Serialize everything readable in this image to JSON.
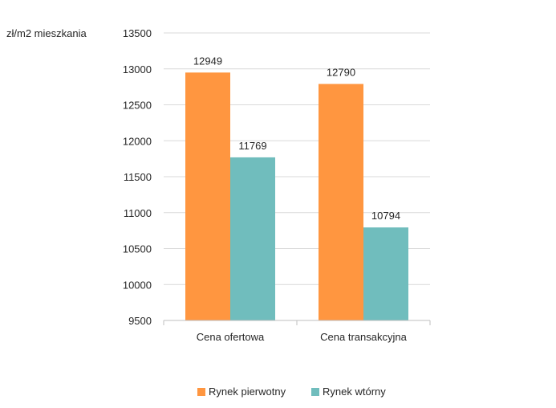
{
  "chart_data": {
    "type": "bar",
    "ylabel": "zł/m2 mieszkania",
    "ylim": [
      9500,
      13500
    ],
    "yticks": [
      9500,
      10000,
      10500,
      11000,
      11500,
      12000,
      12500,
      13000,
      13500
    ],
    "categories": [
      "Cena ofertowa",
      "Cena transakcyjna"
    ],
    "series": [
      {
        "name": "Rynek pierwotny",
        "color": "#ff9640",
        "values": [
          12949,
          12790
        ]
      },
      {
        "name": "Rynek wtórny",
        "color": "#70bdbd",
        "values": [
          11769,
          10794
        ]
      }
    ],
    "grid": true,
    "legend": "bottom"
  }
}
